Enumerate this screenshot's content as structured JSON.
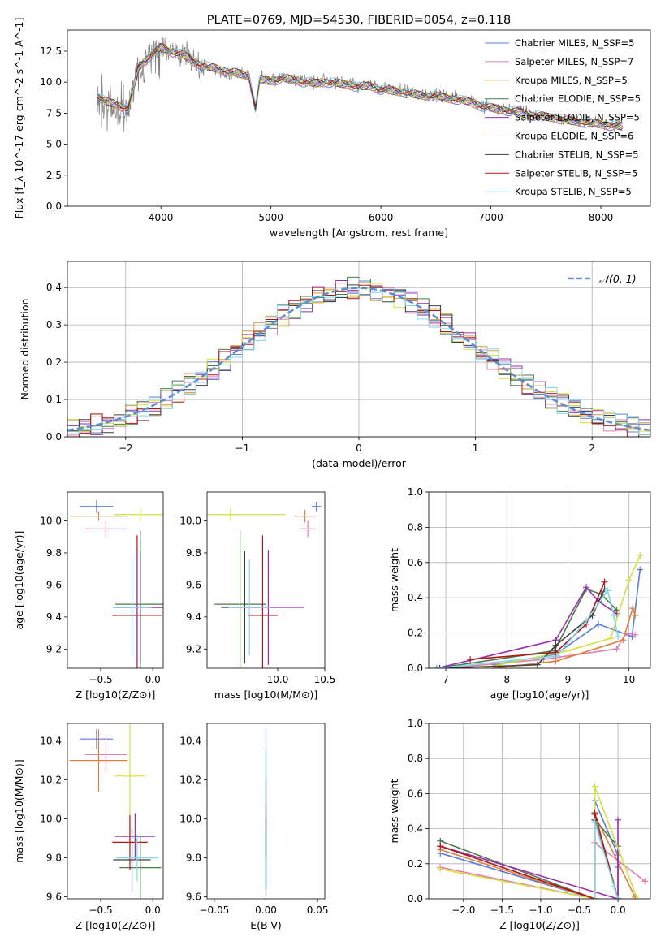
{
  "chart_data": [
    {
      "id": "spectrum",
      "type": "line",
      "title": "PLATE=0769, MJD=54530, FIBERID=0054, z=0.118",
      "xlabel": "wavelength [Angstrom, rest frame]",
      "ylabel": "Flux [f_λ 10^-17 erg cm^-2 s^-1 A^-1]",
      "xlim": [
        3150,
        8450
      ],
      "ylim": [
        0,
        14.2
      ],
      "xticks": [
        4000,
        5000,
        6000,
        7000,
        8000
      ],
      "yticks": [
        0.0,
        2.5,
        5.0,
        7.5,
        10.0,
        12.5
      ],
      "legend_position": "top-right",
      "legend": [
        {
          "name": "Chabrier MILES, N_SSP=5",
          "color": "#5b7fd4"
        },
        {
          "name": "Salpeter MILES, N_SSP=7",
          "color": "#e07fb0"
        },
        {
          "name": "Kroupa MILES, N_SSP=5",
          "color": "#c8a040"
        },
        {
          "name": "Chabrier ELODIE, N_SSP=5",
          "color": "#4a7a4a"
        },
        {
          "name": "Salpeter ELODIE, N_SSP=5",
          "color": "#9a2fb0"
        },
        {
          "name": "Kroupa ELODIE, N_SSP=6",
          "color": "#d4e040"
        },
        {
          "name": "Chabrier STELIB, N_SSP=5",
          "color": "#404040"
        },
        {
          "name": "Salpeter STELIB, N_SSP=5",
          "color": "#b01818"
        },
        {
          "name": "Kroupa STELIB, N_SSP=5",
          "color": "#80d8e8"
        }
      ],
      "data_series": [
        {
          "name": "data",
          "color": "#808080",
          "x": [
            3420,
            3500,
            3600,
            3700,
            3800,
            3900,
            4000,
            4100,
            4200,
            4300,
            4400,
            4500,
            4600,
            4700,
            4800,
            4860,
            4900,
            5000,
            5100,
            5200,
            5300,
            5400,
            5500,
            5600,
            5700,
            5800,
            5900,
            6000,
            6100,
            6200,
            6300,
            6400,
            6500,
            6600,
            6700,
            6800,
            6900,
            7000,
            7100,
            7200,
            7300,
            7400,
            7500,
            7600,
            7700,
            7800,
            7900,
            8000,
            8100,
            8200
          ],
          "y": [
            8.8,
            8.3,
            8.0,
            7.6,
            11.0,
            12.0,
            12.6,
            12.5,
            12.3,
            11.5,
            11.4,
            11.0,
            10.8,
            10.7,
            10.6,
            7.8,
            10.3,
            10.2,
            10.4,
            10.2,
            10.1,
            10.0,
            10.1,
            10.0,
            9.9,
            9.7,
            9.8,
            9.5,
            9.4,
            9.3,
            9.1,
            9.0,
            9.0,
            8.8,
            8.7,
            8.5,
            8.2,
            8.0,
            7.9,
            7.7,
            7.6,
            7.4,
            7.3,
            7.2,
            7.0,
            6.9,
            6.8,
            6.7,
            6.6,
            6.5
          ]
        }
      ],
      "model_curve": {
        "x": [
          3420,
          3500,
          3600,
          3700,
          3800,
          3900,
          4000,
          4100,
          4200,
          4300,
          4400,
          4500,
          4600,
          4700,
          4800,
          4860,
          4900,
          5000,
          5100,
          5200,
          5300,
          5400,
          5500,
          5600,
          5700,
          5800,
          5900,
          6000,
          6100,
          6200,
          6300,
          6400,
          6500,
          6600,
          6700,
          6800,
          6900,
          7000,
          7100,
          7200,
          7300,
          7400,
          7500,
          7600,
          7700,
          7800,
          7900,
          8000,
          8100,
          8200
        ],
        "y": [
          8.9,
          8.4,
          8.2,
          7.8,
          11.2,
          12.1,
          12.8,
          12.4,
          12.2,
          11.6,
          11.3,
          11.1,
          10.9,
          10.7,
          10.5,
          7.9,
          10.2,
          10.1,
          10.3,
          10.2,
          10.0,
          9.9,
          10.0,
          9.9,
          9.8,
          9.6,
          9.7,
          9.4,
          9.3,
          9.2,
          9.0,
          8.9,
          8.9,
          8.7,
          8.6,
          8.4,
          8.1,
          7.9,
          7.8,
          7.6,
          7.5,
          7.3,
          7.2,
          7.1,
          6.9,
          6.8,
          6.7,
          6.6,
          6.5,
          6.4
        ]
      }
    },
    {
      "id": "residuals",
      "type": "histogram",
      "xlabel": "(data-model)/error",
      "ylabel": "Normed distribution",
      "xlim": [
        -2.5,
        2.5
      ],
      "ylim": [
        0,
        0.47
      ],
      "xticks": [
        -2,
        -1,
        0,
        1,
        2
      ],
      "xticklabels": [
        "−2",
        "−1",
        "0",
        "1",
        "2"
      ],
      "yticks": [
        0.0,
        0.1,
        0.2,
        0.3,
        0.4
      ],
      "legend_position": "top-right",
      "gauss_label": "𝒩(0, 1)",
      "gauss_color": "#5b8fd4",
      "bin_width": 0.1
    },
    {
      "id": "z-age",
      "type": "errorbar",
      "xlabel": "Z [log10(Z/Z⊙)]",
      "ylabel": "age [log10(age/yr)]",
      "xlim": [
        -0.82,
        0.1
      ],
      "ylim": [
        9.08,
        10.18
      ],
      "xticks": [
        -0.5,
        0.0
      ],
      "xticklabels": [
        "−0.5",
        "0.0"
      ],
      "yticks": [
        9.2,
        9.4,
        9.6,
        9.8,
        10.0
      ],
      "points": [
        {
          "x": -0.54,
          "xerr": 0.16,
          "y": 10.09,
          "yerr": 0.04,
          "color": "#5b7fd4"
        },
        {
          "x": -0.52,
          "xerr": 0.28,
          "y": 10.03,
          "yerr": 0.03,
          "color": "#e08040"
        },
        {
          "x": -0.45,
          "xerr": 0.2,
          "y": 9.95,
          "yerr": 0.05,
          "color": "#e07fb0"
        },
        {
          "x": -0.12,
          "xerr": 0.25,
          "y": 10.04,
          "yerr": 0.04,
          "color": "#d4e040"
        },
        {
          "x": -0.12,
          "xerr": 0.24,
          "y": 9.48,
          "yerr": 0.46,
          "color": "#4a7a4a"
        },
        {
          "x": -0.12,
          "xerr": 0.25,
          "y": 9.46,
          "yerr": 0.35,
          "color": "#404040"
        },
        {
          "x": -0.15,
          "xerr": 0.24,
          "y": 9.41,
          "yerr": 0.5,
          "color": "#b01818"
        },
        {
          "x": -0.15,
          "xerr": 0.22,
          "y": 9.46,
          "yerr": 0.36,
          "color": "#9a2fb0"
        },
        {
          "x": -0.2,
          "xerr": 0.19,
          "y": 9.46,
          "yerr": 0.3,
          "color": "#80d8e8"
        }
      ]
    },
    {
      "id": "mass-age",
      "type": "errorbar",
      "xlabel": "mass [log10(M/M⊙)]",
      "ylabel": "",
      "xlim": [
        9.25,
        10.5
      ],
      "ylim": [
        9.08,
        10.18
      ],
      "xticks": [
        10.0,
        10.5
      ],
      "xticklabels": [
        "10.0",
        "10.5"
      ],
      "yticks": [
        9.2,
        9.4,
        9.6,
        9.8,
        10.0
      ],
      "points": [
        {
          "x": 10.41,
          "xerr": 0.05,
          "y": 10.09,
          "yerr": 0.03,
          "color": "#5b7fd4"
        },
        {
          "x": 10.29,
          "xerr": 0.11,
          "y": 10.03,
          "yerr": 0.04,
          "color": "#e08040"
        },
        {
          "x": 10.32,
          "xerr": 0.08,
          "y": 9.95,
          "yerr": 0.05,
          "color": "#e07fb0"
        },
        {
          "x": 9.5,
          "xerr": 0.58,
          "y": 10.04,
          "yerr": 0.04,
          "color": "#d4e040"
        },
        {
          "x": 9.6,
          "xerr": 0.27,
          "y": 9.48,
          "yerr": 0.46,
          "color": "#4a7a4a"
        },
        {
          "x": 9.65,
          "xerr": 0.25,
          "y": 9.46,
          "yerr": 0.35,
          "color": "#404040"
        },
        {
          "x": 9.84,
          "xerr": 0.16,
          "y": 9.41,
          "yerr": 0.5,
          "color": "#b01818"
        },
        {
          "x": 9.9,
          "xerr": 0.38,
          "y": 9.46,
          "yerr": 0.36,
          "color": "#9a2fb0"
        },
        {
          "x": 9.7,
          "xerr": 0.22,
          "y": 9.46,
          "yerr": 0.3,
          "color": "#80d8e8"
        }
      ]
    },
    {
      "id": "age-weight",
      "type": "line",
      "xlabel": "age [log10(age/yr)]",
      "ylabel": "mass weight",
      "xlim": [
        6.72,
        10.35
      ],
      "ylim": [
        0,
        1.0
      ],
      "xticks": [
        7,
        8,
        9,
        10
      ],
      "yticks": [
        0.0,
        0.2,
        0.4,
        0.6,
        0.8,
        1.0
      ],
      "series": [
        {
          "color": "#5b7fd4",
          "x": [
            7.8,
            8.8,
            9.5,
            10.05,
            10.18
          ],
          "y": [
            0.02,
            0.08,
            0.25,
            0.18,
            0.56
          ]
        },
        {
          "color": "#e07fb0",
          "x": [
            7.0,
            8.6,
            9.8,
            9.95,
            10.1
          ],
          "y": [
            0.0,
            0.05,
            0.11,
            0.2,
            0.19
          ]
        },
        {
          "color": "#e08040",
          "x": [
            7.8,
            8.8,
            9.9,
            10.06,
            10.1
          ],
          "y": [
            0.0,
            0.04,
            0.16,
            0.34,
            0.3
          ]
        },
        {
          "color": "#4a7a4a",
          "x": [
            6.85,
            8.78,
            9.3,
            9.55,
            9.8
          ],
          "y": [
            0.0,
            0.1,
            0.45,
            0.42,
            0.33
          ]
        },
        {
          "color": "#9a2fb0",
          "x": [
            6.85,
            8.8,
            9.3,
            9.5,
            9.8
          ],
          "y": [
            0.0,
            0.16,
            0.46,
            0.38,
            0.31
          ]
        },
        {
          "color": "#d4e040",
          "x": [
            7.6,
            9.0,
            9.7,
            10.0,
            10.18
          ],
          "y": [
            0.0,
            0.1,
            0.17,
            0.5,
            0.64
          ]
        },
        {
          "color": "#404040",
          "x": [
            6.9,
            8.5,
            8.8,
            9.4,
            9.6
          ],
          "y": [
            0.0,
            0.02,
            0.13,
            0.3,
            0.45
          ]
        },
        {
          "color": "#b01818",
          "x": [
            7.4,
            8.8,
            9.3,
            9.6
          ],
          "y": [
            0.05,
            0.09,
            0.25,
            0.49
          ]
        },
        {
          "color": "#80d8e8",
          "x": [
            6.85,
            8.82,
            9.3,
            9.65,
            9.75,
            9.82
          ],
          "y": [
            0.0,
            0.07,
            0.27,
            0.44,
            0.3,
            0.18
          ]
        }
      ]
    },
    {
      "id": "z-mass",
      "type": "errorbar",
      "xlabel": "Z [log10(Z/Z⊙)]",
      "ylabel": "mass [log10(M/M⊙)]",
      "xlim": [
        -0.82,
        0.1
      ],
      "ylim": [
        9.59,
        10.49
      ],
      "xticks": [
        -0.5,
        0.0
      ],
      "xticklabels": [
        "−0.5",
        "0.0"
      ],
      "yticks": [
        9.6,
        9.8,
        10.0,
        10.2,
        10.4
      ],
      "points": [
        {
          "x": -0.54,
          "xerr": 0.16,
          "y": 10.41,
          "yerr": 0.05,
          "color": "#5b7fd4"
        },
        {
          "x": -0.52,
          "xerr": 0.28,
          "y": 10.3,
          "yerr": 0.16,
          "color": "#e08040"
        },
        {
          "x": -0.45,
          "xerr": 0.2,
          "y": 10.33,
          "yerr": 0.09,
          "color": "#e07fb0"
        },
        {
          "x": -0.22,
          "xerr": 0.15,
          "y": 10.22,
          "yerr": 0.35,
          "color": "#d4e040"
        },
        {
          "x": -0.12,
          "xerr": 0.2,
          "y": 9.75,
          "yerr": 0.16,
          "color": "#4a7a4a"
        },
        {
          "x": -0.2,
          "xerr": 0.18,
          "y": 9.79,
          "yerr": 0.16,
          "color": "#404040"
        },
        {
          "x": -0.22,
          "xerr": 0.17,
          "y": 9.88,
          "yerr": 0.14,
          "color": "#b01818"
        },
        {
          "x": -0.17,
          "xerr": 0.19,
          "y": 9.91,
          "yerr": 0.12,
          "color": "#9a2fb0"
        },
        {
          "x": -0.15,
          "xerr": 0.2,
          "y": 9.8,
          "yerr": 0.12,
          "color": "#80d8e8"
        }
      ]
    },
    {
      "id": "ebv-mass",
      "type": "errorbar",
      "xlabel": "E(B-V)",
      "ylabel": "",
      "xlim": [
        -0.057,
        0.057
      ],
      "ylim": [
        9.59,
        10.49
      ],
      "xticks": [
        -0.05,
        0.0,
        0.05
      ],
      "xticklabels": [
        "−0.05",
        "0.00",
        "0.05"
      ],
      "yticks": [
        9.6,
        9.8,
        10.0,
        10.2,
        10.4
      ],
      "points": [
        {
          "x": 0.0,
          "xerr": 0.0,
          "y": 10.05,
          "yerr": 0.42,
          "color": "#5b7fd4"
        },
        {
          "x": 0.0,
          "xerr": 0.0,
          "y": 10.15,
          "yerr": 0.2,
          "color": "#e08040"
        },
        {
          "x": 0.0,
          "xerr": 0.0,
          "y": 10.0,
          "yerr": 0.2,
          "color": "#b01818"
        },
        {
          "x": 0.0,
          "xerr": 0.0,
          "y": 9.85,
          "yerr": 0.2,
          "color": "#9a2fb0"
        },
        {
          "x": 0.0,
          "xerr": 0.0,
          "y": 9.8,
          "yerr": 0.2,
          "color": "#404040"
        },
        {
          "x": 0.0,
          "xerr": 0.0,
          "y": 10.0,
          "yerr": 0.35,
          "color": "#80d8e8"
        }
      ]
    },
    {
      "id": "z-weight",
      "type": "line",
      "xlabel": "Z [log10(Z/Z⊙)]",
      "ylabel": "mass weight",
      "xlim": [
        -2.45,
        0.42
      ],
      "ylim": [
        0,
        1.0
      ],
      "xticks": [
        -2.0,
        -1.5,
        -1.0,
        -0.5,
        0.0
      ],
      "xticklabels": [
        "−2.0",
        "−1.5",
        "−1.0",
        "−0.5",
        "0.0"
      ],
      "yticks": [
        0.0,
        0.2,
        0.4,
        0.6,
        0.8,
        1.0
      ],
      "series": [
        {
          "color": "#5b7fd4",
          "x": [
            -2.3,
            -0.3,
            -0.3,
            0.0,
            0.0
          ],
          "y": [
            0.26,
            0.0,
            0.56,
            0.25,
            0.18
          ]
        },
        {
          "color": "#e07fb0",
          "x": [
            -2.3,
            -0.3,
            -0.3,
            0.35
          ],
          "y": [
            0.18,
            0.0,
            0.32,
            0.1
          ]
        },
        {
          "color": "#e08040",
          "x": [
            -2.3,
            -0.3,
            -0.3,
            0.22
          ],
          "y": [
            0.28,
            0.0,
            0.48,
            0.01
          ]
        },
        {
          "color": "#4a7a4a",
          "x": [
            -2.3,
            -0.3,
            -0.3,
            0.0,
            0.0
          ],
          "y": [
            0.33,
            0.0,
            0.45,
            0.3,
            0.0
          ]
        },
        {
          "color": "#9a2fb0",
          "x": [
            -2.3,
            0.0,
            0.0
          ],
          "y": [
            0.3,
            0.0,
            0.45
          ]
        },
        {
          "color": "#d4e040",
          "x": [
            -2.3,
            -0.3,
            -0.3,
            0.25
          ],
          "y": [
            0.17,
            0.0,
            0.64,
            0.0
          ]
        },
        {
          "color": "#404040",
          "x": [
            -0.3,
            -0.3,
            0.0
          ],
          "y": [
            0.0,
            0.45,
            0.0
          ]
        },
        {
          "color": "#b01818",
          "x": [
            -2.3,
            -0.3,
            -0.3,
            0.0
          ],
          "y": [
            0.3,
            0.0,
            0.49,
            0.0
          ]
        },
        {
          "color": "#80d8e8",
          "x": [
            -0.3,
            -0.3,
            -0.05,
            0.0
          ],
          "y": [
            0.0,
            0.44,
            0.07,
            0.0
          ]
        }
      ]
    }
  ]
}
